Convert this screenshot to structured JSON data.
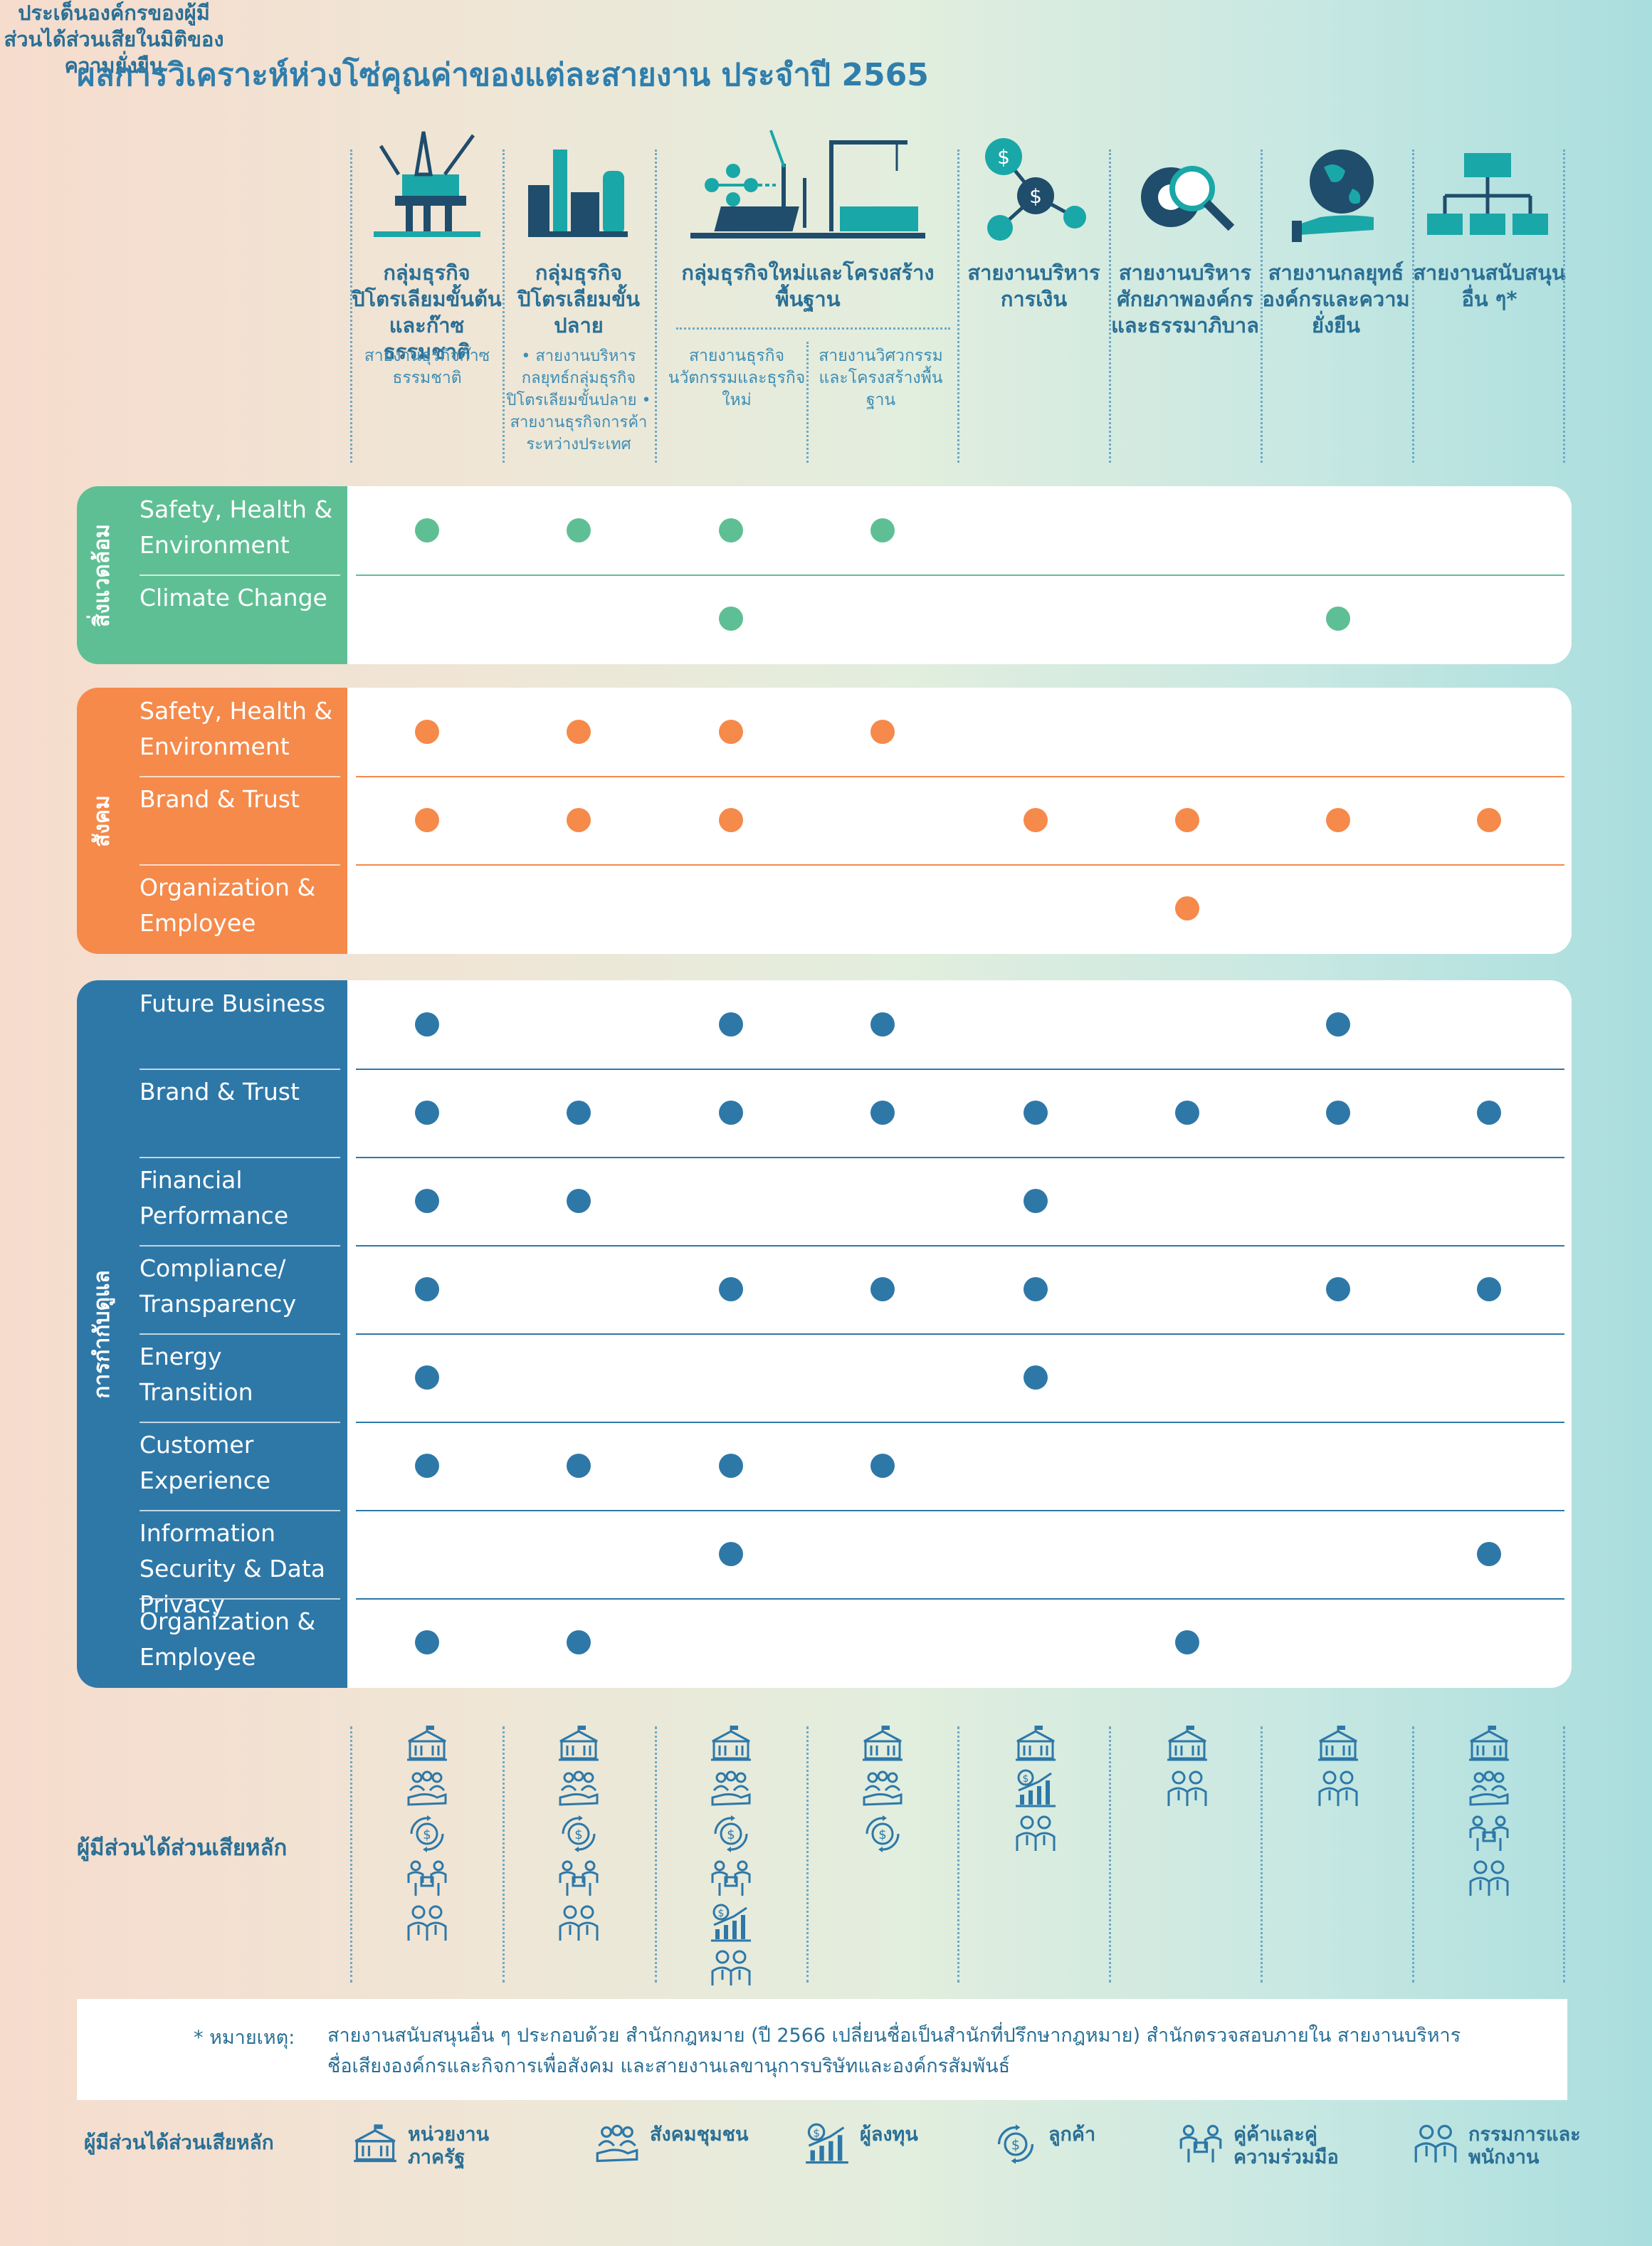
{
  "title": "ผลการวิเคราะห์ห่วงโซ่คุณค่าของแต่ละสายงาน ประจำปี 2565",
  "issues_header": "ประเด็นองค์กรของผู้มีส่วนได้ส่วนเสียในมิติของความยั่งยืน",
  "columns": [
    {
      "head": "กลุ่มธุรกิจปิโตรเลียมขั้นต้นและก๊าซธรรมชาติ",
      "sub": "สายงานธุรกิจก๊าซธรรมชาติ",
      "icon": "oil-platform-icon"
    },
    {
      "head": "กลุ่มธุรกิจปิโตรเลียมขั้นปลาย",
      "sub": "• สายงานบริหารกลยุทธ์กลุ่มธุรกิจปิโตรเลียมขั้นปลาย • สายงานธุรกิจการค้าระหว่างประเทศ",
      "icon": "refinery-icon"
    },
    {
      "head": "กลุ่มธุรกิจใหม่และโครงสร้างพื้นฐาน",
      "icon": "renewable-infrastructure-icon"
    },
    {
      "head": "สายงานบริหารการเงิน",
      "icon": "finance-network-icon"
    },
    {
      "head": "สายงานบริหารศักยภาพองค์กรและธรรมาภิบาล",
      "icon": "gear-search-icon"
    },
    {
      "head": "สายงานกลยุทธ์องค์กรและความยั่งยืน",
      "icon": "globe-hand-icon"
    },
    {
      "head": "สายงานสนับสนุนอื่น ๆ*",
      "icon": "org-chart-icon"
    }
  ],
  "new_business_subs": [
    "สายงานธุรกิจนวัตกรรมและธุรกิจใหม่",
    "สายงานวิศวกรรมและโครงสร้างพื้นฐาน"
  ],
  "sections": [
    {
      "label": "สิ่งแวดล้อม",
      "color": "#5fbf94",
      "rows": [
        {
          "name": "Safety, Health & Environment",
          "dots": [
            1,
            1,
            1,
            1,
            0,
            0,
            0,
            0
          ]
        },
        {
          "name": "Climate Change",
          "dots": [
            0,
            0,
            1,
            0,
            0,
            0,
            1,
            0
          ]
        }
      ]
    },
    {
      "label": "สังคม",
      "color": "#f58a4b",
      "rows": [
        {
          "name": "Safety, Health & Environment",
          "dots": [
            1,
            1,
            1,
            1,
            0,
            0,
            0,
            0
          ]
        },
        {
          "name": "Brand & Trust",
          "dots": [
            1,
            1,
            1,
            0,
            1,
            1,
            1,
            1
          ]
        },
        {
          "name": "Organization & Employee",
          "dots": [
            0,
            0,
            0,
            0,
            0,
            1,
            0,
            0
          ]
        }
      ]
    },
    {
      "label": "การกำกับดูแล",
      "color": "#2e78a8",
      "rows": [
        {
          "name": "Future Business",
          "dots": [
            1,
            0,
            1,
            1,
            0,
            0,
            1,
            0
          ]
        },
        {
          "name": "Brand & Trust",
          "dots": [
            1,
            1,
            1,
            1,
            1,
            1,
            1,
            1
          ]
        },
        {
          "name": "Financial Performance",
          "dots": [
            1,
            1,
            0,
            0,
            1,
            0,
            0,
            0
          ]
        },
        {
          "name": "Compliance/ Transparency",
          "dots": [
            1,
            0,
            1,
            1,
            1,
            0,
            1,
            1
          ]
        },
        {
          "name": "Energy Transition",
          "dots": [
            1,
            0,
            0,
            0,
            1,
            0,
            0,
            0
          ]
        },
        {
          "name": "Customer Experience",
          "dots": [
            1,
            1,
            1,
            1,
            0,
            0,
            0,
            0
          ]
        },
        {
          "name": "Information Security & Data Privacy",
          "dots": [
            0,
            0,
            1,
            0,
            0,
            0,
            0,
            1
          ]
        },
        {
          "name": "Organization & Employee",
          "dots": [
            1,
            1,
            0,
            0,
            0,
            1,
            0,
            0
          ]
        }
      ]
    }
  ],
  "stakeholders_label": "ผู้มีส่วนได้ส่วนเสียหลัก",
  "stakeholder_icons": [
    [
      "government-icon",
      "community-icon",
      "customer-icon",
      "partner-icon",
      "employee-icon"
    ],
    [
      "government-icon",
      "community-icon",
      "customer-icon",
      "partner-icon",
      "employee-icon"
    ],
    [
      "government-icon",
      "community-icon",
      "customer-icon",
      "partner-icon",
      "investor-icon",
      "employee-icon"
    ],
    [
      "government-icon",
      "community-icon",
      "customer-icon"
    ],
    [
      "government-icon",
      "investor-icon",
      "employee-icon"
    ],
    [
      "government-icon",
      "employee-icon"
    ],
    [
      "government-icon",
      "employee-icon"
    ],
    [
      "government-icon",
      "community-icon",
      "partner-icon",
      "employee-icon"
    ]
  ],
  "note": {
    "title": "* หมายเหตุ:",
    "text": "สายงานสนับสนุนอื่น ๆ ประกอบด้วย สำนักกฎหมาย (ปี 2566 เปลี่ยนชื่อเป็นสำนักที่ปรึกษากฎหมาย) สำนักตรวจสอบภายใน สายงานบริหารชื่อเสียงองค์กรและกิจการเพื่อสังคม และสายงานเลขานุการบริษัทและองค์กรสัมพันธ์"
  },
  "legend": {
    "label": "ผู้มีส่วนได้ส่วนเสียหลัก",
    "items": [
      {
        "icon": "government-icon",
        "text": "หน่วยงานภาครัฐ"
      },
      {
        "icon": "community-icon",
        "text": "สังคมชุมชน"
      },
      {
        "icon": "investor-icon",
        "text": "ผู้ลงทุน"
      },
      {
        "icon": "customer-icon",
        "text": "ลูกค้า"
      },
      {
        "icon": "partner-icon",
        "text": "คู่ค้าและคู่ความร่วมมือ"
      },
      {
        "icon": "employee-icon",
        "text": "กรรมการและพนักงาน"
      }
    ]
  }
}
